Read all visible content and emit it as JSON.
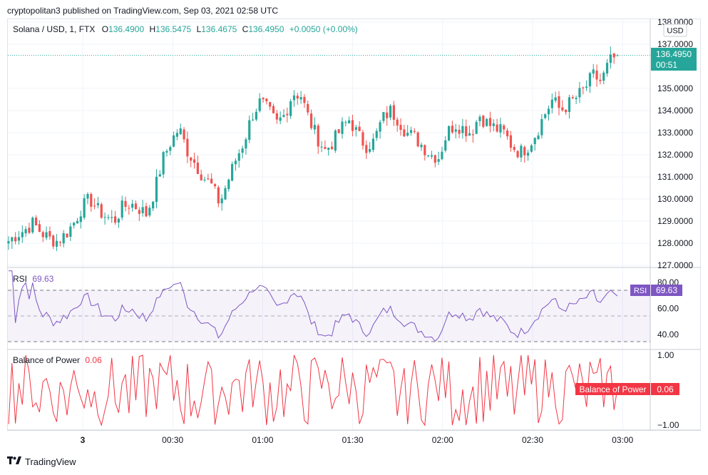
{
  "publish": "cryptopolitan3 published on TradingView.com, Sep 03, 2021 02:58 UTC",
  "legend": {
    "symbol": "Solana / USD, 1, FTX",
    "o_label": "O",
    "o_value": "136.4900",
    "h_label": "H",
    "h_value": "136.5475",
    "l_label": "L",
    "l_value": "136.4675",
    "c_label": "C",
    "c_value": "136.4950",
    "change": "+0.0050 (+0.00%)"
  },
  "price_axis": {
    "currency": "USD",
    "ticks": [
      "138.0000",
      "137.0000",
      "135.0000",
      "134.0000",
      "133.0000",
      "132.0000",
      "131.0000",
      "130.0000",
      "129.0000",
      "128.0000",
      "127.0000"
    ],
    "last_price": "136.4950",
    "countdown": "00:51"
  },
  "rsi": {
    "name": "RSI",
    "value": "69.63",
    "ticks": [
      "80.00",
      "60.00",
      "40.00"
    ],
    "tag_name": "RSI",
    "tag_value": "69.63"
  },
  "bop": {
    "name": "Balance of Power",
    "value": "0.06",
    "ticks": [
      "1.00",
      "−1.00"
    ],
    "tag_name": "Balance of Power",
    "tag_value": "0.06"
  },
  "time_axis": [
    "3",
    "00:30",
    "01:00",
    "01:30",
    "02:00",
    "02:30",
    "03:00"
  ],
  "footer": {
    "brand": "TradingView"
  },
  "colors": {
    "up": "#26a69a",
    "down": "#ef5350",
    "rsi": "#7e57c2",
    "bop": "#f23645"
  },
  "chart_data": [
    {
      "type": "candlestick",
      "title": "Solana / USD, 1, FTX",
      "ylabel": "USD",
      "ylim": [
        127,
        138
      ],
      "x_ticks": [
        "3",
        "00:30",
        "01:00",
        "01:30",
        "02:00",
        "02:30",
        "03:00"
      ],
      "anchor_closes": [
        128.1,
        128.4,
        128.6,
        128.9,
        128.5,
        128.2,
        128.1,
        128.4,
        128.9,
        129.6,
        130.0,
        129.5,
        129.2,
        129.0,
        129.6,
        129.8,
        129.6,
        129.3,
        130.4,
        131.8,
        132.6,
        133.2,
        132.2,
        131.6,
        131.0,
        130.6,
        129.8,
        130.8,
        131.8,
        132.6,
        133.8,
        134.4,
        134.0,
        133.4,
        133.8,
        134.8,
        134.7,
        133.6,
        132.8,
        132.2,
        132.6,
        133.2,
        133.6,
        132.9,
        132.4,
        132.6,
        133.6,
        134.0,
        133.6,
        133.0,
        132.8,
        132.4,
        132.0,
        131.9,
        133.0,
        133.4,
        133.2,
        133.0,
        133.8,
        133.4,
        133.2,
        133.0,
        132.4,
        132.1,
        132.4,
        133.0,
        133.8,
        134.5,
        134.0,
        134.3,
        134.6,
        135.0,
        135.6,
        135.3,
        136.2,
        136.5
      ],
      "last": {
        "open": 136.49,
        "high": 136.5475,
        "low": 136.4675,
        "close": 136.495
      }
    },
    {
      "type": "line",
      "title": "RSI",
      "ylim": [
        30,
        90
      ],
      "bands": {
        "upper": 70,
        "middle": 50,
        "lower": 30
      },
      "last_value": 69.63
    },
    {
      "type": "line",
      "title": "Balance of Power",
      "ylim": [
        -1.1,
        1.1
      ],
      "last_value": 0.06
    }
  ]
}
